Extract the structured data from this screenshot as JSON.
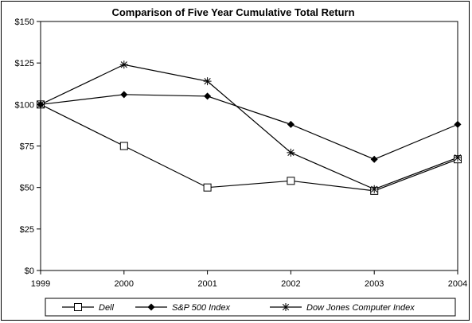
{
  "chart_data": {
    "type": "line",
    "title": "Comparison of Five Year Cumulative Total Return",
    "xlabel": "",
    "ylabel": "",
    "categories": [
      "1999",
      "2000",
      "2001",
      "2002",
      "2003",
      "2004"
    ],
    "y_ticks": [
      "$0",
      "$25",
      "$50",
      "$75",
      "$100",
      "$125",
      "$150"
    ],
    "y_tick_values": [
      0,
      25,
      50,
      75,
      100,
      125,
      150
    ],
    "ylim": [
      0,
      150
    ],
    "grid": false,
    "legend_position": "bottom",
    "series": [
      {
        "name": "Dell",
        "marker": "open-square",
        "values": [
          100,
          75,
          50,
          54,
          48,
          67
        ]
      },
      {
        "name": "S&P 500 Index",
        "marker": "filled-diamond",
        "values": [
          100,
          106,
          105,
          88,
          67,
          88
        ]
      },
      {
        "name": "Dow Jones Computer Index",
        "marker": "asterisk",
        "values": [
          100,
          124,
          114,
          71,
          49,
          68
        ]
      }
    ],
    "colors": {
      "line": "#000000",
      "background": "#ffffff"
    }
  }
}
